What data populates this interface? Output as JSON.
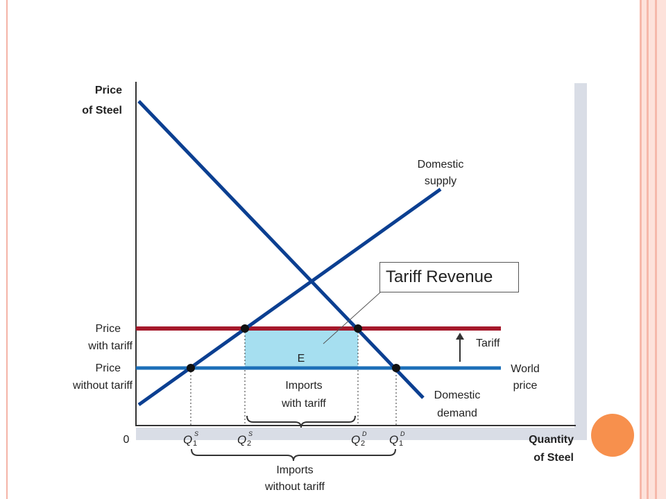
{
  "chart_data": {
    "type": "line",
    "title": "",
    "ylabel": [
      "Price",
      "of Steel"
    ],
    "xlabel": [
      "Quantity",
      "of Steel"
    ],
    "origin_label": "0",
    "series": [
      {
        "name": "Domestic supply",
        "label_lines": [
          "Domestic",
          "supply"
        ],
        "color": "#0b3f91"
      },
      {
        "name": "Domestic demand",
        "label_lines": [
          "Domestic",
          "demand"
        ],
        "color": "#0b3f91"
      },
      {
        "name": "World price",
        "label_lines": [
          "World",
          "price"
        ],
        "color": "#1d6fb8"
      },
      {
        "name": "Price with tariff",
        "label_lines": [
          "Price",
          "with tariff"
        ],
        "color": "#a5192b"
      }
    ],
    "price_lines": [
      {
        "name": "Price without tariff",
        "label_lines": [
          "Price",
          "without tariff"
        ]
      },
      {
        "name": "Price with tariff",
        "label_lines": [
          "Price",
          "with tariff"
        ]
      }
    ],
    "quantity_ticks": [
      {
        "base": "Q",
        "sub": "1",
        "sup": "S"
      },
      {
        "base": "Q",
        "sub": "2",
        "sup": "S"
      },
      {
        "base": "Q",
        "sub": "2",
        "sup": "D"
      },
      {
        "base": "Q",
        "sub": "1",
        "sup": "D"
      }
    ],
    "region": {
      "label": "E",
      "fill": "#a6dff0"
    },
    "tariff_label": "Tariff",
    "brace_labels": {
      "with_tariff": [
        "Imports",
        "with tariff"
      ],
      "without_tariff": [
        "Imports",
        "without tariff"
      ]
    },
    "callout": "Tariff Revenue"
  }
}
